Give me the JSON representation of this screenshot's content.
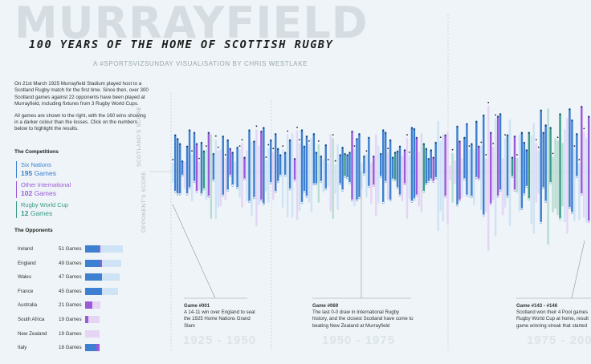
{
  "header": {
    "bg_title": "MURRAYFIELD",
    "title": "100 YEARS OF THE HOME OF SCOTTISH RUGBY",
    "subtitle": "A #SPORTSVIZSUNDAY VISUALISATION BY CHRIS WESTLAKE"
  },
  "intro": {
    "p1": "On 21st March 1925 Murrayfield Stadium played host to a Scotland Rugby match for the first time. Since then, over 300 Scotland games against 22 opponents have been played at Murrayfield, including fixtures from 3 Rugby World Cups.",
    "p2": "All games are shown to the right, with the 160 wins showing in a darker colour than the losses. Click on the numbers below to highlight the results."
  },
  "competitions": {
    "heading": "The Competitions",
    "items": [
      {
        "name": "Six Nations",
        "count": "195",
        "suffix": "Games",
        "color": "#3d7fd0"
      },
      {
        "name": "Other International",
        "count": "102",
        "suffix": "Games",
        "color": "#9b5ad8"
      },
      {
        "name": "Rugby World Cup",
        "count": "12",
        "suffix": "Games",
        "color": "#3a9a86"
      }
    ]
  },
  "opponents": {
    "heading": "The Opponents",
    "rows": [
      {
        "team": "Ireland",
        "games": "51 Games",
        "win": 0.37,
        "other": 0.04
      },
      {
        "team": "England",
        "games": "49 Games",
        "win": 0.43,
        "other": 0.07
      },
      {
        "team": "Wales",
        "games": "47 Games",
        "win": 0.49,
        "other": 0.0
      },
      {
        "team": "France",
        "games": "45 Games",
        "win": 0.51,
        "other": 0.0
      },
      {
        "team": "Australia",
        "games": "21 Games",
        "win": 0.0,
        "other": 0.31
      },
      {
        "team": "South Africa",
        "games": "19 Games",
        "win": 0.0,
        "other": 0.12
      },
      {
        "team": "New Zealand",
        "games": "19 Games",
        "win": 0.0,
        "other": 0.0
      },
      {
        "team": "Italy",
        "games": "18 Games",
        "win": 0.0,
        "other": 0.85
      }
    ]
  },
  "axis": {
    "scotland_label": "SCOTLAND'S SCORE",
    "opponent_label": "OPPONENT'S SCORE"
  },
  "eras": [
    "1925 - 1950",
    "1950 - 1975",
    "1975 - 200"
  ],
  "annotations": [
    {
      "title": "Game #001",
      "text": "A 14-11 win over England to seal the 1925 Home Nations Grand Slam"
    },
    {
      "title": "Game #069",
      "text": "The last 0-0 draw in International Rugby history, and the closest Scotland have come to beating New Zealand at Murrayfield"
    },
    {
      "title": "Game #143 - #146",
      "text": "Scotland won their 4 Pool games Rugby World Cup at home, result game winning streak that started"
    }
  ],
  "colors": {
    "six_nations": "#3d7fd0",
    "other_international": "#9b5ad8",
    "world_cup": "#3a9a86",
    "loss_six_nations": "#cfe3f6",
    "loss_other": "#e6d4f5"
  },
  "chart_data": {
    "type": "bar",
    "description_series": "game index; scotland score (up) vs opponent score (down); comp: S=Six Nations, O=Other International, W=Rugby World Cup; win flag",
    "games": [
      {
        "s": 14,
        "o": 11,
        "c": "S",
        "w": 1
      },
      {
        "s": 9,
        "o": 8,
        "c": "S",
        "w": 1
      },
      {
        "s": 23,
        "o": 15,
        "c": "S",
        "w": 1
      },
      {
        "s": 11,
        "o": 0,
        "c": "S",
        "w": 1
      },
      {
        "s": 3,
        "o": 7,
        "c": "O",
        "w": 0
      },
      {
        "s": 0,
        "o": 9,
        "c": "S",
        "w": 0
      },
      {
        "s": 5,
        "o": 3,
        "c": "S",
        "w": 1
      },
      {
        "s": 13,
        "o": 8,
        "c": "S",
        "w": 1
      },
      {
        "s": 20,
        "o": 6,
        "c": "S",
        "w": 1
      },
      {
        "s": 28,
        "o": 3,
        "c": "S",
        "w": 1
      },
      {
        "s": 15,
        "o": 14,
        "c": "S",
        "w": 1
      },
      {
        "s": 6,
        "o": 6,
        "c": "O",
        "w": 0
      }
    ],
    "ylabel": ""
  }
}
